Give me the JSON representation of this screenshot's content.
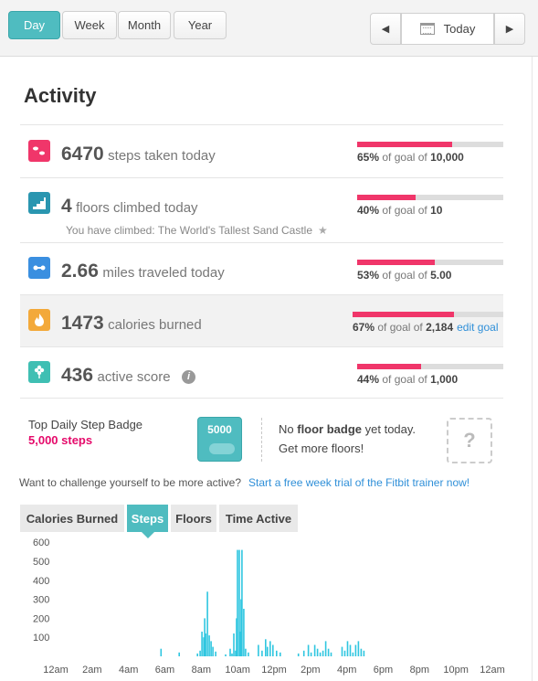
{
  "topbar": {
    "views": [
      "Day",
      "Week",
      "Month",
      "Year"
    ],
    "active_view": "Day",
    "prev_label": "◀",
    "next_label": "▶",
    "today_label": "Today"
  },
  "activity": {
    "title": "Activity",
    "rows": [
      {
        "icon": "footsteps-icon",
        "value": "6470",
        "label": "steps taken today",
        "percent_label": "65%",
        "goal_text": "of goal of",
        "goal": "10,000",
        "progress": 0.65
      },
      {
        "icon": "stairs-icon",
        "value": "4",
        "label": "floors climbed today",
        "percent_label": "40%",
        "goal_text": "of goal of",
        "goal": "10",
        "progress": 0.4,
        "note": "You have climbed: The World's Tallest Sand Castle"
      },
      {
        "icon": "distance-icon",
        "value": "2.66",
        "label": "miles traveled today",
        "percent_label": "53%",
        "goal_text": "of goal of",
        "goal": "5.00",
        "progress": 0.53
      },
      {
        "icon": "flame-icon",
        "value": "1473",
        "label": "calories burned",
        "percent_label": "67%",
        "goal_text": "of goal of",
        "goal": "2,184",
        "progress": 0.67,
        "edit_label": "edit goal"
      },
      {
        "icon": "flower-icon",
        "value": "436",
        "label": "active score",
        "percent_label": "44%",
        "goal_text": "of goal of",
        "goal": "1,000",
        "progress": 0.44,
        "info_label": "i"
      }
    ]
  },
  "badges": {
    "step_badge_title": "Top Daily Step Badge",
    "step_badge_value": "5,000 steps",
    "step_badge_image_text": "5000",
    "floor_text_pre": "No ",
    "floor_text_bold": "floor badge",
    "floor_text_post": " yet today.",
    "floor_cta": "Get more floors!",
    "placeholder_mark": "?"
  },
  "challenge": {
    "text": "Want to challenge yourself to be more active?",
    "link": "Start a free week trial of the Fitbit trainer now!"
  },
  "chart_tabs": {
    "items": [
      "Calories Burned",
      "Steps",
      "Floors",
      "Time Active"
    ],
    "active": "Steps"
  },
  "colors": {
    "accent": "#4fbcc0",
    "progress_fill": "#f0366a",
    "progress_track": "#dddddd",
    "bar": "#2fc6e0",
    "steps_icon": "#f0366a",
    "floors_icon": "#2a96b0",
    "distance_icon": "#3a8fe0",
    "calories_icon": "#f3a93a",
    "score_icon": "#3fbfb3",
    "link": "#2f8fd8",
    "badge_text": "#e5096a"
  },
  "chart_data": {
    "type": "bar",
    "series": [
      {
        "values": [
          [
            5.75,
            40
          ],
          [
            6.75,
            20
          ],
          [
            7.75,
            15
          ],
          [
            7.9,
            30
          ],
          [
            8.0,
            130
          ],
          [
            8.1,
            100
          ],
          [
            8.15,
            200
          ],
          [
            8.2,
            120
          ],
          [
            8.3,
            340
          ],
          [
            8.4,
            110
          ],
          [
            8.5,
            80
          ],
          [
            8.6,
            50
          ],
          [
            8.75,
            25
          ],
          [
            9.3,
            10
          ],
          [
            9.55,
            40
          ],
          [
            9.65,
            15
          ],
          [
            9.75,
            120
          ],
          [
            9.85,
            30
          ],
          [
            9.9,
            200
          ],
          [
            9.95,
            560
          ],
          [
            10.05,
            560
          ],
          [
            10.1,
            130
          ],
          [
            10.15,
            300
          ],
          [
            10.2,
            560
          ],
          [
            10.3,
            250
          ],
          [
            10.4,
            40
          ],
          [
            10.55,
            20
          ],
          [
            11.1,
            60
          ],
          [
            11.3,
            30
          ],
          [
            11.5,
            90
          ],
          [
            11.6,
            50
          ],
          [
            11.75,
            80
          ],
          [
            11.9,
            60
          ],
          [
            12.1,
            30
          ],
          [
            12.3,
            20
          ],
          [
            13.3,
            15
          ],
          [
            13.6,
            30
          ],
          [
            13.85,
            60
          ],
          [
            14.0,
            20
          ],
          [
            14.2,
            60
          ],
          [
            14.35,
            40
          ],
          [
            14.5,
            20
          ],
          [
            14.65,
            30
          ],
          [
            14.8,
            80
          ],
          [
            14.95,
            40
          ],
          [
            15.1,
            20
          ],
          [
            15.7,
            50
          ],
          [
            15.85,
            30
          ],
          [
            16.0,
            80
          ],
          [
            16.15,
            60
          ],
          [
            16.3,
            20
          ],
          [
            16.45,
            60
          ],
          [
            16.6,
            80
          ],
          [
            16.75,
            40
          ],
          [
            16.9,
            30
          ]
        ]
      }
    ],
    "y_ticks": [
      100,
      200,
      300,
      400,
      500,
      600
    ],
    "ylim": [
      0,
      630
    ],
    "x_ticks": [
      "12am",
      "2am",
      "4am",
      "6am",
      "8am",
      "10am",
      "12pm",
      "2pm",
      "4pm",
      "6pm",
      "8pm",
      "10pm",
      "12am"
    ],
    "xlim": [
      0,
      24
    ]
  }
}
